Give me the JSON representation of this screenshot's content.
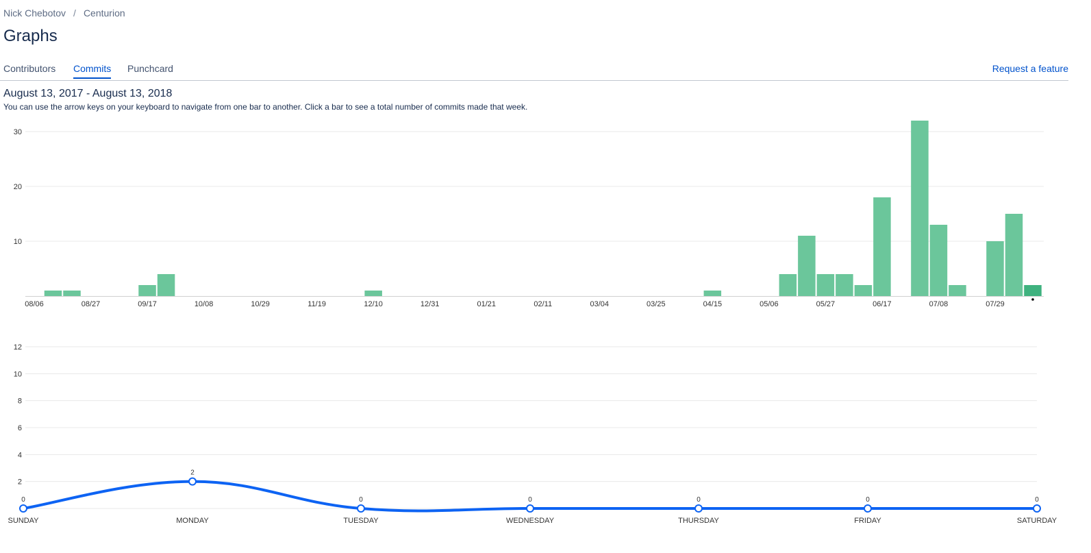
{
  "breadcrumb": {
    "user": "Nick Chebotov",
    "separator": "/",
    "repo": "Centurion"
  },
  "page": {
    "title": "Graphs",
    "date_range": "August 13, 2017 - August 13, 2018",
    "hint": "You can use the arrow keys on your keyboard to navigate from one bar to another. Click a bar to see a total number of commits made that week."
  },
  "tabs": [
    {
      "label": "Contributors",
      "active": false
    },
    {
      "label": "Commits",
      "active": true
    },
    {
      "label": "Punchcard",
      "active": false
    }
  ],
  "request_feature": "Request a feature",
  "colors": {
    "bar": "#6bc69b",
    "bar_selected": "#3fb27f",
    "line": "#0d63f3",
    "grid": "#e8e8e8",
    "link": "#0052cc"
  },
  "chart_data": [
    {
      "type": "bar",
      "description_axis": "weekly commits",
      "x_tick_labels": [
        "08/06",
        "08/27",
        "09/17",
        "10/08",
        "10/29",
        "11/19",
        "12/10",
        "12/31",
        "01/21",
        "02/11",
        "03/04",
        "03/25",
        "04/15",
        "05/06",
        "05/27",
        "06/17",
        "07/08",
        "07/29"
      ],
      "weeks": [
        "08/06",
        "08/13",
        "08/20",
        "08/27",
        "09/03",
        "09/10",
        "09/17",
        "09/24",
        "10/01",
        "10/08",
        "10/15",
        "10/22",
        "10/29",
        "11/05",
        "11/12",
        "11/19",
        "11/26",
        "12/03",
        "12/10",
        "12/17",
        "12/24",
        "12/31",
        "01/07",
        "01/14",
        "01/21",
        "01/28",
        "02/04",
        "02/11",
        "02/18",
        "02/25",
        "03/04",
        "03/11",
        "03/18",
        "03/25",
        "04/01",
        "04/08",
        "04/15",
        "04/22",
        "04/29",
        "05/06",
        "05/13",
        "05/20",
        "05/27",
        "06/03",
        "06/10",
        "06/17",
        "06/24",
        "07/01",
        "07/08",
        "07/15",
        "07/22",
        "07/29",
        "08/05",
        "08/12"
      ],
      "values": [
        0,
        1,
        1,
        0,
        0,
        0,
        2,
        4,
        0,
        0,
        0,
        0,
        0,
        0,
        0,
        0,
        0,
        0,
        1,
        0,
        0,
        0,
        0,
        0,
        0,
        0,
        0,
        0,
        0,
        0,
        0,
        0,
        0,
        0,
        0,
        0,
        1,
        0,
        0,
        0,
        4,
        11,
        4,
        4,
        2,
        18,
        0,
        32,
        13,
        2,
        0,
        10,
        15,
        2
      ],
      "selected_index": 53,
      "y_ticks": [
        10,
        20,
        30
      ],
      "ylim": [
        0,
        32
      ]
    },
    {
      "type": "line",
      "categories": [
        "SUNDAY",
        "MONDAY",
        "TUESDAY",
        "WEDNESDAY",
        "THURSDAY",
        "FRIDAY",
        "SATURDAY"
      ],
      "values": [
        0,
        2,
        0,
        0,
        0,
        0,
        0
      ],
      "y_ticks": [
        2,
        4,
        6,
        8,
        10,
        12
      ],
      "ylim": [
        0,
        12
      ]
    }
  ]
}
